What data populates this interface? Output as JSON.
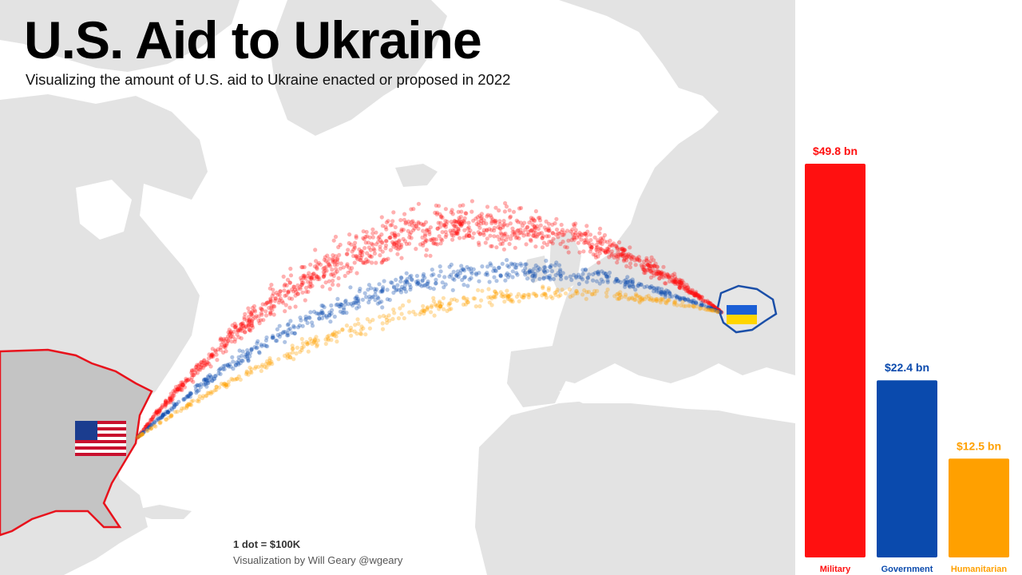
{
  "title": "U.S. Aid to Ukraine",
  "subtitle": "Visualizing the amount of U.S. aid to Ukraine enacted or proposed in 2022",
  "footnote": {
    "dot_scale": "1 dot = $100K",
    "credit": "Visualization by Will Geary @wgeary"
  },
  "map": {
    "origin_icon": "us-flag-icon",
    "destination_icon": "ukraine-flag-icon",
    "land_color": "#e3e3e3",
    "ocean_color": "#ffffff",
    "highlight_border_red": "#e8121c",
    "highlight_border_blue": "#1b4fa8"
  },
  "chart_data": {
    "type": "bar",
    "categories": [
      "Military",
      "Government",
      "Humanitarian"
    ],
    "values": [
      49.8,
      22.4,
      12.5
    ],
    "value_labels": [
      "$49.8 bn",
      "$22.4 bn",
      "$12.5 bn"
    ],
    "unit": "bn USD",
    "colors": [
      "#ff1010",
      "#0a4aad",
      "#ffa000"
    ],
    "ylim": [
      0,
      49.8
    ],
    "grid": false,
    "legend": "none"
  }
}
